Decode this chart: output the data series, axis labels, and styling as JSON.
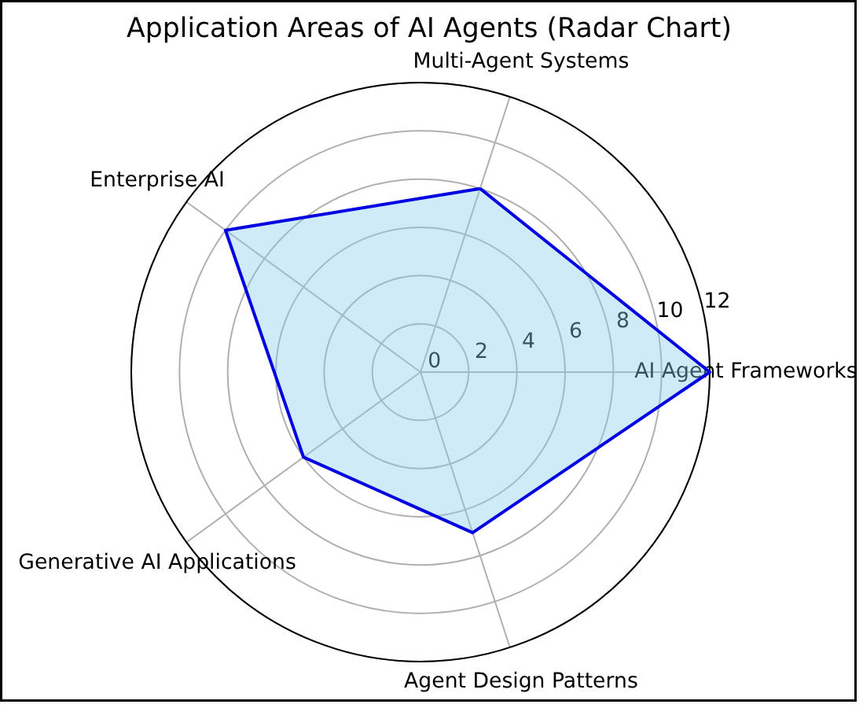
{
  "chart_data": {
    "type": "radar",
    "title": "Application Areas of AI Agents (Radar Chart)",
    "categories": [
      "Multi-Agent Systems",
      "AI Agent Frameworks",
      "Agent Design Patterns",
      "Generative AI Applications",
      "Enterprise AI"
    ],
    "series": [
      {
        "color": "#0000e0",
        "values": [
          8,
          12,
          7,
          6,
          10
        ]
      }
    ],
    "ylim": [
      0,
      12
    ],
    "yticks": [
      0,
      2,
      4,
      6,
      8,
      10,
      12
    ],
    "grid": true
  }
}
